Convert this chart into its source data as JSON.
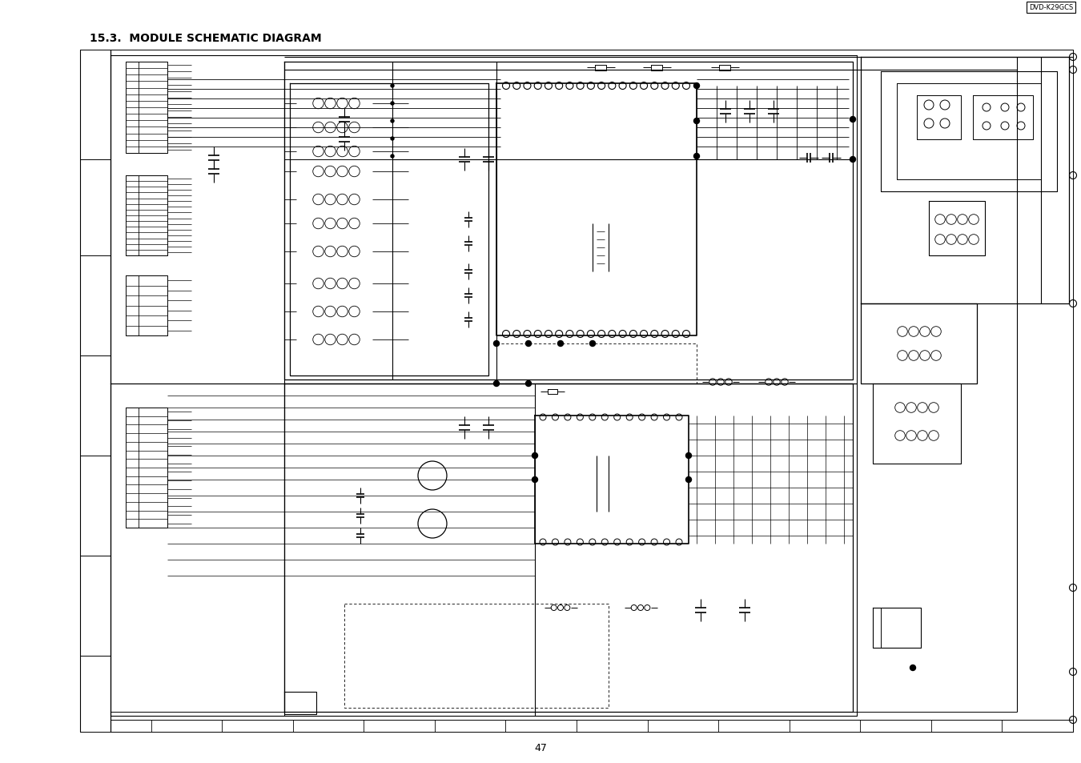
{
  "title": "15.3.  MODULE SCHEMATIC DIAGRAM",
  "page_number": "47",
  "model_label": "DVD-K29GCS",
  "bg_color": "#ffffff",
  "figsize": [
    13.5,
    9.54
  ],
  "dpi": 100
}
